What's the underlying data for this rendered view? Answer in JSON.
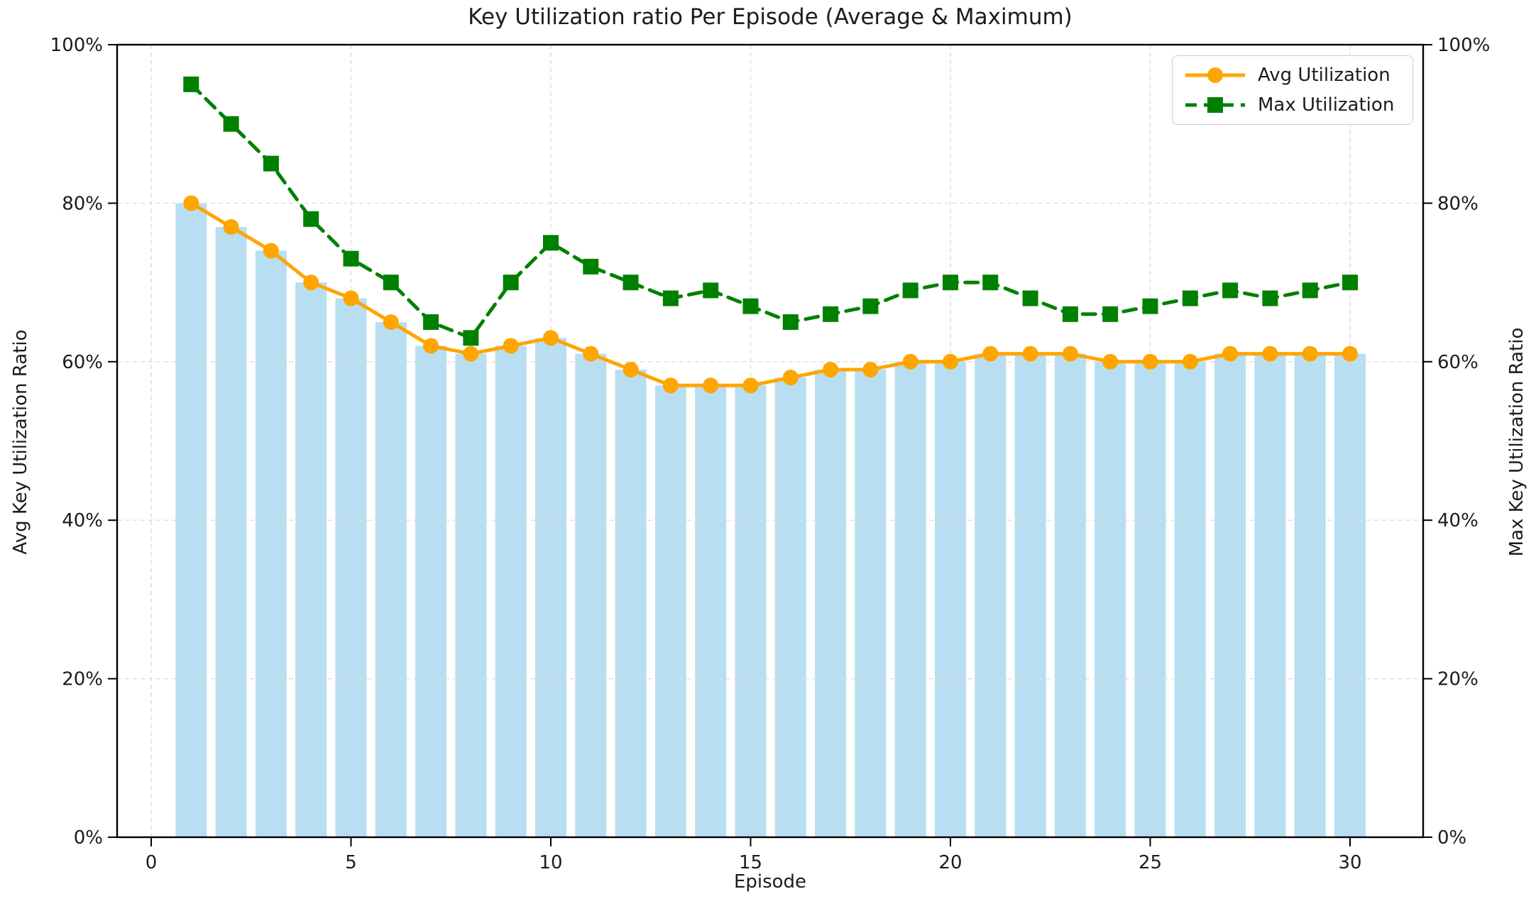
{
  "colors": {
    "bar_fill": "#B8DEF1",
    "avg_line": "#FFA500",
    "max_line": "#008000",
    "grid": "#DCDCDC",
    "spine": "#000000",
    "text": "#1C1C1C",
    "legend_border": "#CCCCCC",
    "background": "#FFFFFF"
  },
  "legend": {
    "items": [
      {
        "label": "Avg Utilization",
        "marker": "circle",
        "line": "solid"
      },
      {
        "label": "Max Utilization",
        "marker": "square",
        "line": "dashed"
      }
    ]
  },
  "chart_data": {
    "type": "bar",
    "title": "Key Utilization ratio Per Episode (Average & Maximum)",
    "xlabel": "Episode",
    "ylabel_left": "Avg Key Utilization Ratio",
    "ylabel_right": "Max Key Utilization Ratio",
    "x": [
      1,
      2,
      3,
      4,
      5,
      6,
      7,
      8,
      9,
      10,
      11,
      12,
      13,
      14,
      15,
      16,
      17,
      18,
      19,
      20,
      21,
      22,
      23,
      24,
      25,
      26,
      27,
      28,
      29,
      30
    ],
    "series": [
      {
        "name": "Avg Utilization (bars)",
        "type": "bar",
        "axis": "left",
        "color_key": "bar_fill",
        "values": [
          80,
          77,
          74,
          70,
          68,
          65,
          62,
          61,
          62,
          63,
          61,
          59,
          57,
          57,
          57,
          58,
          59,
          59,
          60,
          60,
          61,
          61,
          61,
          60,
          60,
          60,
          61,
          61,
          61,
          61
        ]
      },
      {
        "name": "Avg Utilization",
        "type": "line",
        "axis": "left",
        "marker": "circle",
        "dash": false,
        "color_key": "avg_line",
        "values": [
          80,
          77,
          74,
          70,
          68,
          65,
          62,
          61,
          62,
          63,
          61,
          59,
          57,
          57,
          57,
          58,
          59,
          59,
          60,
          60,
          61,
          61,
          61,
          60,
          60,
          60,
          61,
          61,
          61,
          61
        ]
      },
      {
        "name": "Max Utilization",
        "type": "line",
        "axis": "right",
        "marker": "square",
        "dash": true,
        "color_key": "max_line",
        "values": [
          95,
          90,
          85,
          78,
          73,
          70,
          65,
          63,
          70,
          75,
          72,
          70,
          68,
          69,
          67,
          65,
          66,
          67,
          69,
          70,
          70,
          68,
          66,
          66,
          67,
          68,
          69,
          68,
          69,
          70
        ]
      }
    ],
    "x_ticks": [
      0,
      5,
      10,
      15,
      20,
      25,
      30
    ],
    "y_ticks": [
      0,
      20,
      40,
      60,
      80,
      100
    ],
    "y_tick_suffix": "%",
    "ylim": [
      0,
      100
    ],
    "xlim": [
      -0.85,
      31.85
    ],
    "grid": true,
    "legend_position": "top-right"
  }
}
